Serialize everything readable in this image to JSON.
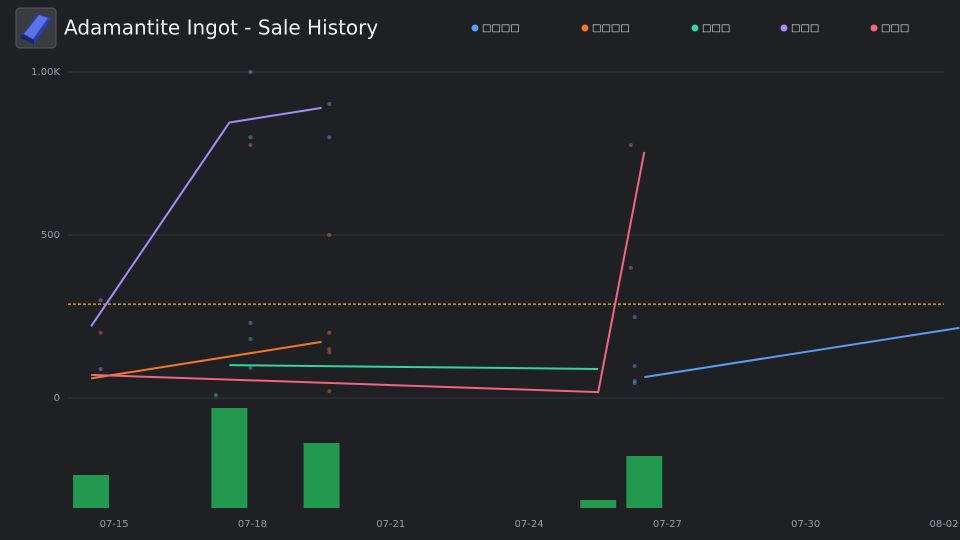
{
  "chart_data": {
    "type": "line",
    "title": "Adamantite Ingot - Sale History",
    "xlim": [
      "07-14",
      "08-02"
    ],
    "xticks": [
      "07-15",
      "07-18",
      "07-21",
      "07-24",
      "07-27",
      "07-30",
      "08-02"
    ],
    "ylim": [
      0,
      1000
    ],
    "yticks": [
      0,
      500,
      {
        "value": 1000,
        "label": "1.00K"
      }
    ],
    "grid": true,
    "reference_line": {
      "value": 288,
      "color": "#e6b422"
    },
    "series": [
      {
        "name": "□□□□",
        "color": "#5b9cf0",
        "x": [
          "07-26 12:00",
          "08-02 08:00"
        ],
        "values": [
          64,
          215
        ],
        "points": {
          "x": [
            "07-26 07:00",
            "07-26 07:00",
            "07-26 07:00",
            "07-26 07:00"
          ],
          "values": [
            248,
            98,
            52,
            46
          ]
        }
      },
      {
        "name": "□□□□",
        "color": "#f07828",
        "x": [
          "07-14 12:00",
          "07-19 12:00"
        ],
        "values": [
          60,
          172
        ],
        "points": {
          "x": [
            "07-19 16:00",
            "07-19 16:00",
            "07-19 16:00",
            "07-19 16:00"
          ],
          "values": [
            500,
            200,
            150,
            21
          ]
        }
      },
      {
        "name": "□□□",
        "color": "#34d399",
        "x": [
          "07-17 12:00",
          "07-25 12:00"
        ],
        "values": [
          101,
          89
        ],
        "points": {
          "x": [
            "07-17 05:00",
            "07-17 23:00",
            "07-17 23:00",
            "07-17 23:00"
          ],
          "values": [
            9,
            800,
            181,
            92
          ]
        }
      },
      {
        "name": "□□□",
        "color": "#a78bfa",
        "x": [
          "07-14 12:00",
          "07-17 12:00",
          "07-19 12:00"
        ],
        "values": [
          220,
          845,
          890
        ],
        "points": {
          "x": [
            "07-14 17:00",
            "07-14 17:00",
            "07-17 23:00",
            "07-17 23:00",
            "07-19 16:00",
            "07-19 16:00"
          ],
          "values": [
            300,
            89,
            1000,
            230,
            902,
            800
          ]
        }
      },
      {
        "name": "□□□",
        "color": "#f0667f",
        "x": [
          "07-14 12:00",
          "07-25 12:00",
          "07-26 12:00"
        ],
        "values": [
          71,
          18,
          755
        ],
        "points": {
          "x": [
            "07-14 17:00",
            "07-17 23:00",
            "07-19 16:00",
            "07-26 05:00",
            "07-26 05:00"
          ],
          "values": [
            200,
            776,
            140,
            776,
            399
          ]
        }
      }
    ],
    "volume": {
      "color": "#22994f",
      "ylim": [
        0,
        100
      ],
      "x": [
        "07-14 12:00",
        "07-17 12:00",
        "07-19 12:00",
        "07-25 12:00",
        "07-26 12:00"
      ],
      "values": [
        33,
        100,
        65,
        8,
        52
      ]
    }
  }
}
